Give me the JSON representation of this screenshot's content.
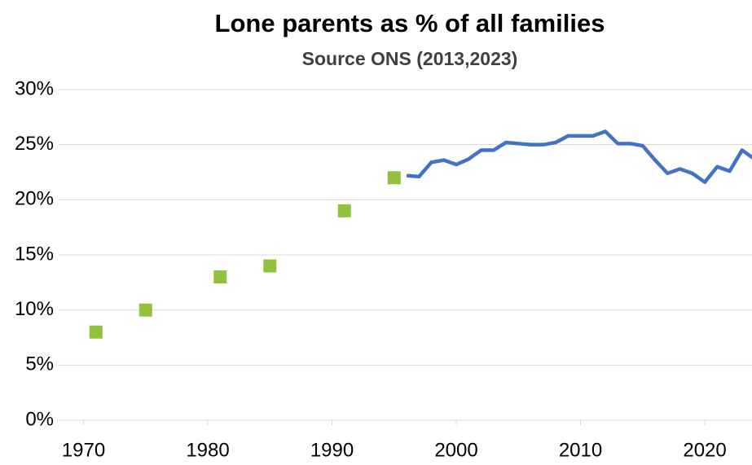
{
  "chart_data": {
    "type": "line",
    "title": "Lone parents as % of all families",
    "subtitle": "Source ONS (2013,2023)",
    "series": [
      {
        "mode": "markers",
        "marker": "square",
        "color": "#92c13e",
        "x": [
          1971,
          1975,
          1981,
          1985,
          1991,
          1995
        ],
        "values": [
          8,
          10,
          13,
          14,
          19,
          22
        ]
      },
      {
        "mode": "line",
        "color": "#4472c4",
        "x": [
          1996,
          1997,
          1998,
          1999,
          2000,
          2001,
          2002,
          2003,
          2004,
          2005,
          2006,
          2007,
          2008,
          2009,
          2010,
          2011,
          2012,
          2013,
          2014,
          2015,
          2016,
          2017,
          2018,
          2019,
          2020,
          2021,
          2022,
          2023,
          2024
        ],
        "values": [
          22.2,
          22.1,
          23.4,
          23.6,
          23.2,
          23.7,
          24.5,
          24.5,
          25.2,
          25.1,
          25.0,
          25.0,
          25.2,
          25.8,
          25.8,
          25.8,
          26.2,
          25.1,
          25.1,
          24.9,
          23.6,
          22.4,
          22.8,
          22.4,
          21.6,
          23.0,
          22.6,
          24.5,
          23.7
        ]
      }
    ],
    "xlim": [
      1968,
      2023.8
    ],
    "xticks": [
      1970,
      1980,
      1990,
      2000,
      2010,
      2020
    ],
    "ylim": [
      0,
      30
    ],
    "yticks": [
      {
        "value": 0,
        "label": "0%"
      },
      {
        "value": 5,
        "label": "5%"
      },
      {
        "value": 10,
        "label": "10%"
      },
      {
        "value": 15,
        "label": "15%"
      },
      {
        "value": 20,
        "label": "20%"
      },
      {
        "value": 25,
        "label": "25%"
      },
      {
        "value": 30,
        "label": "30%"
      }
    ],
    "grid": true
  }
}
